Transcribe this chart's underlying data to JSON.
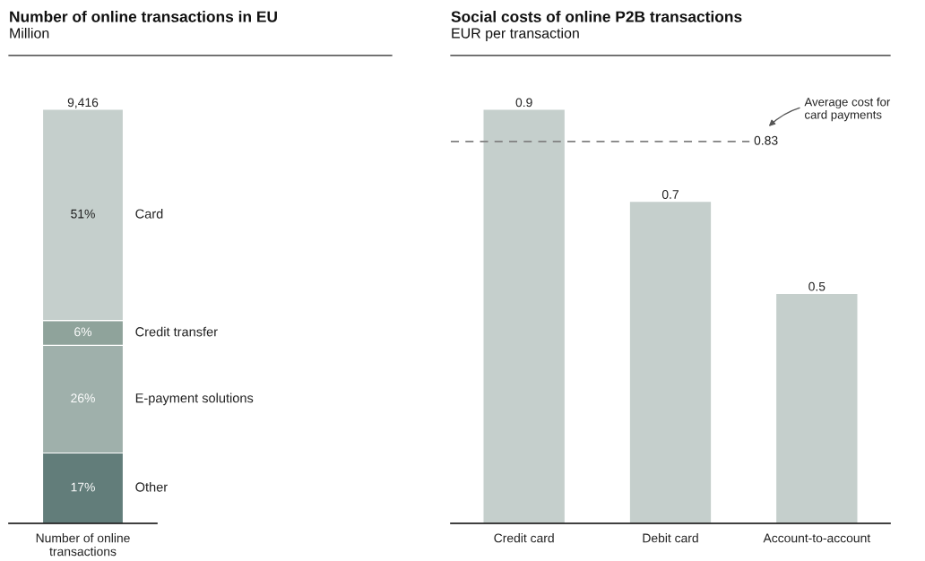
{
  "chart_data": [
    {
      "type": "bar",
      "stacked": true,
      "title": "Number of online transactions in EU",
      "subtitle": "Million",
      "categories": [
        "Number of online\ntransactions"
      ],
      "series": [
        {
          "name": "Other",
          "color": "#627d7a",
          "values": [
            17
          ],
          "value_labels": [
            "17%"
          ]
        },
        {
          "name": "E-payment solutions",
          "color": "#9fb0ab",
          "values": [
            26
          ],
          "value_labels": [
            "26%"
          ]
        },
        {
          "name": "Credit transfer",
          "color": "#8fa39b",
          "values": [
            6
          ],
          "value_labels": [
            "6%"
          ]
        },
        {
          "name": "Card",
          "color": "#c5cfcc",
          "values": [
            51
          ],
          "value_labels": [
            "51%"
          ]
        }
      ],
      "annotations": [
        "9,416"
      ]
    },
    {
      "type": "bar",
      "title": "Social costs of online P2B transactions",
      "subtitle": "EUR per transaction",
      "categories": [
        "Credit card",
        "Debit card",
        "Account-to-account"
      ],
      "values": [
        0.9,
        0.7,
        0.5
      ],
      "color": "#c5cfcc",
      "data_labels": true,
      "ref_lines": [
        {
          "axis": "y",
          "value": 0.83,
          "label": "0.83",
          "color": "#808080",
          "line_style": "dashed"
        }
      ],
      "annotations": [
        "Average cost for\ncard payments"
      ]
    }
  ]
}
